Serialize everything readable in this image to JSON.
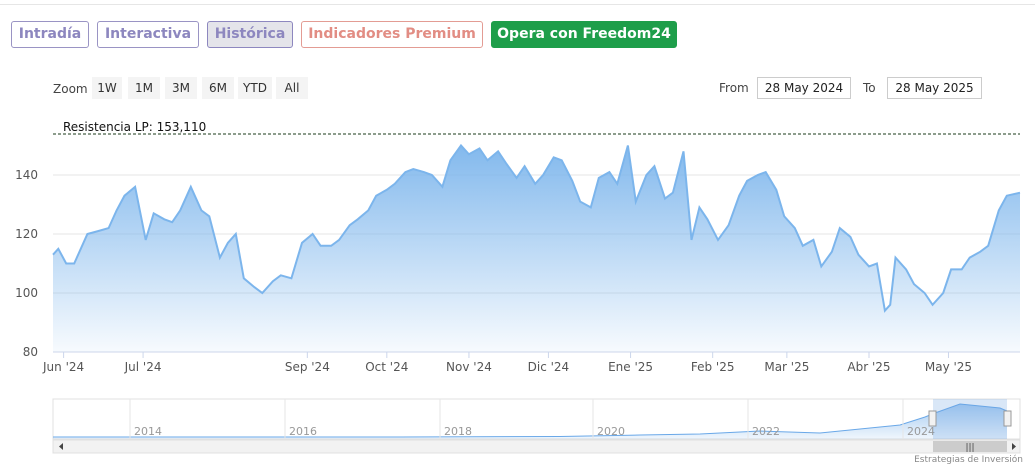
{
  "tabs": [
    {
      "label": "Intradía",
      "state": "normal"
    },
    {
      "label": "Interactiva",
      "state": "normal"
    },
    {
      "label": "Histórica",
      "state": "active"
    },
    {
      "label": "Indicadores Premium",
      "state": "premium"
    },
    {
      "label": "Opera con Freedom24",
      "state": "cta"
    }
  ],
  "colors": {
    "tab_text": "#8d87bf",
    "tab_active_bg": "#e4e4ea",
    "premium": "#e28d84",
    "cta_bg": "#1e9e4a",
    "series_line": "#7cb5ec",
    "navigator_line": "#6aa8e8"
  },
  "zoom": {
    "label": "Zoom",
    "buttons": [
      "1W",
      "1M",
      "3M",
      "6M",
      "YTD",
      "All"
    ]
  },
  "range": {
    "from_label": "From",
    "from_value": "28 May 2024",
    "to_label": "To",
    "to_value": "28 May 2025"
  },
  "chart_data": {
    "type": "area",
    "ylim": [
      80,
      160
    ],
    "yticks": [
      80,
      100,
      120,
      140
    ],
    "xticks": [
      "Jun '24",
      "Jul '24",
      "Sep '24",
      "Oct '24",
      "Nov '24",
      "Dic '24",
      "Ene '25",
      "Feb '25",
      "Mar '25",
      "Abr '25",
      "May '25"
    ],
    "xtick_dates": [
      "2024-06-01",
      "2024-07-01",
      "2024-09-01",
      "2024-10-01",
      "2024-11-01",
      "2024-12-01",
      "2025-01-01",
      "2025-02-01",
      "2025-03-01",
      "2025-04-01",
      "2025-05-01"
    ],
    "xlim": [
      "2024-05-28",
      "2025-05-28"
    ],
    "series": [
      {
        "dates": [
          "2024-05-28",
          "2024-05-30",
          "2024-06-02",
          "2024-06-05",
          "2024-06-10",
          "2024-06-14",
          "2024-06-18",
          "2024-06-21",
          "2024-06-24",
          "2024-06-28",
          "2024-07-02",
          "2024-07-05",
          "2024-07-09",
          "2024-07-12",
          "2024-07-15",
          "2024-07-19",
          "2024-07-23",
          "2024-07-26",
          "2024-07-30",
          "2024-08-02",
          "2024-08-05",
          "2024-08-08",
          "2024-08-12",
          "2024-08-15",
          "2024-08-19",
          "2024-08-22",
          "2024-08-26",
          "2024-08-30",
          "2024-09-03",
          "2024-09-06",
          "2024-09-10",
          "2024-09-13",
          "2024-09-17",
          "2024-09-20",
          "2024-09-24",
          "2024-09-27",
          "2024-10-01",
          "2024-10-04",
          "2024-10-08",
          "2024-10-11",
          "2024-10-15",
          "2024-10-18",
          "2024-10-22",
          "2024-10-25",
          "2024-10-29",
          "2024-11-01",
          "2024-11-05",
          "2024-11-08",
          "2024-11-12",
          "2024-11-15",
          "2024-11-19",
          "2024-11-22",
          "2024-11-26",
          "2024-11-29",
          "2024-12-03",
          "2024-12-06",
          "2024-12-10",
          "2024-12-13",
          "2024-12-17",
          "2024-12-20",
          "2024-12-24",
          "2024-12-27",
          "2024-12-31",
          "2025-01-03",
          "2025-01-07",
          "2025-01-10",
          "2025-01-14",
          "2025-01-17",
          "2025-01-21",
          "2025-01-24",
          "2025-01-27",
          "2025-01-30",
          "2025-02-03",
          "2025-02-07",
          "2025-02-11",
          "2025-02-14",
          "2025-02-18",
          "2025-02-21",
          "2025-02-25",
          "2025-02-28",
          "2025-03-04",
          "2025-03-07",
          "2025-03-11",
          "2025-03-14",
          "2025-03-18",
          "2025-03-21",
          "2025-03-25",
          "2025-03-28",
          "2025-04-01",
          "2025-04-04",
          "2025-04-07",
          "2025-04-09",
          "2025-04-11",
          "2025-04-15",
          "2025-04-18",
          "2025-04-22",
          "2025-04-25",
          "2025-04-29",
          "2025-05-02",
          "2025-05-06",
          "2025-05-09",
          "2025-05-13",
          "2025-05-16",
          "2025-05-20",
          "2025-05-23",
          "2025-05-28"
        ],
        "values": [
          113,
          115,
          110,
          110,
          120,
          121,
          122,
          128,
          133,
          136,
          118,
          127,
          125,
          124,
          128,
          136,
          128,
          126,
          112,
          117,
          120,
          105,
          102,
          100,
          104,
          106,
          105,
          117,
          120,
          116,
          116,
          118,
          123,
          125,
          128,
          133,
          135,
          137,
          141,
          142,
          141,
          140,
          136,
          145,
          150,
          147,
          149,
          145,
          148,
          144,
          139,
          143,
          137,
          140,
          146,
          145,
          138,
          131,
          129,
          139,
          141,
          137,
          150,
          131,
          140,
          143,
          132,
          134,
          148,
          118,
          129,
          125,
          118,
          123,
          133,
          138,
          140,
          141,
          135,
          126,
          122,
          116,
          118,
          109,
          114,
          122,
          119,
          113,
          109,
          110,
          94,
          96,
          112,
          108,
          103,
          100,
          96,
          100,
          108,
          108,
          112,
          114,
          116,
          128,
          133,
          134
        ]
      }
    ],
    "resistance": {
      "label": "Resistencia LP: 153,110",
      "value": 153.11
    },
    "navigator": {
      "labels": [
        "2014",
        "2016",
        "2018",
        "2020",
        "2022",
        "2024"
      ],
      "caption": "Estrategias de Inversión"
    }
  }
}
